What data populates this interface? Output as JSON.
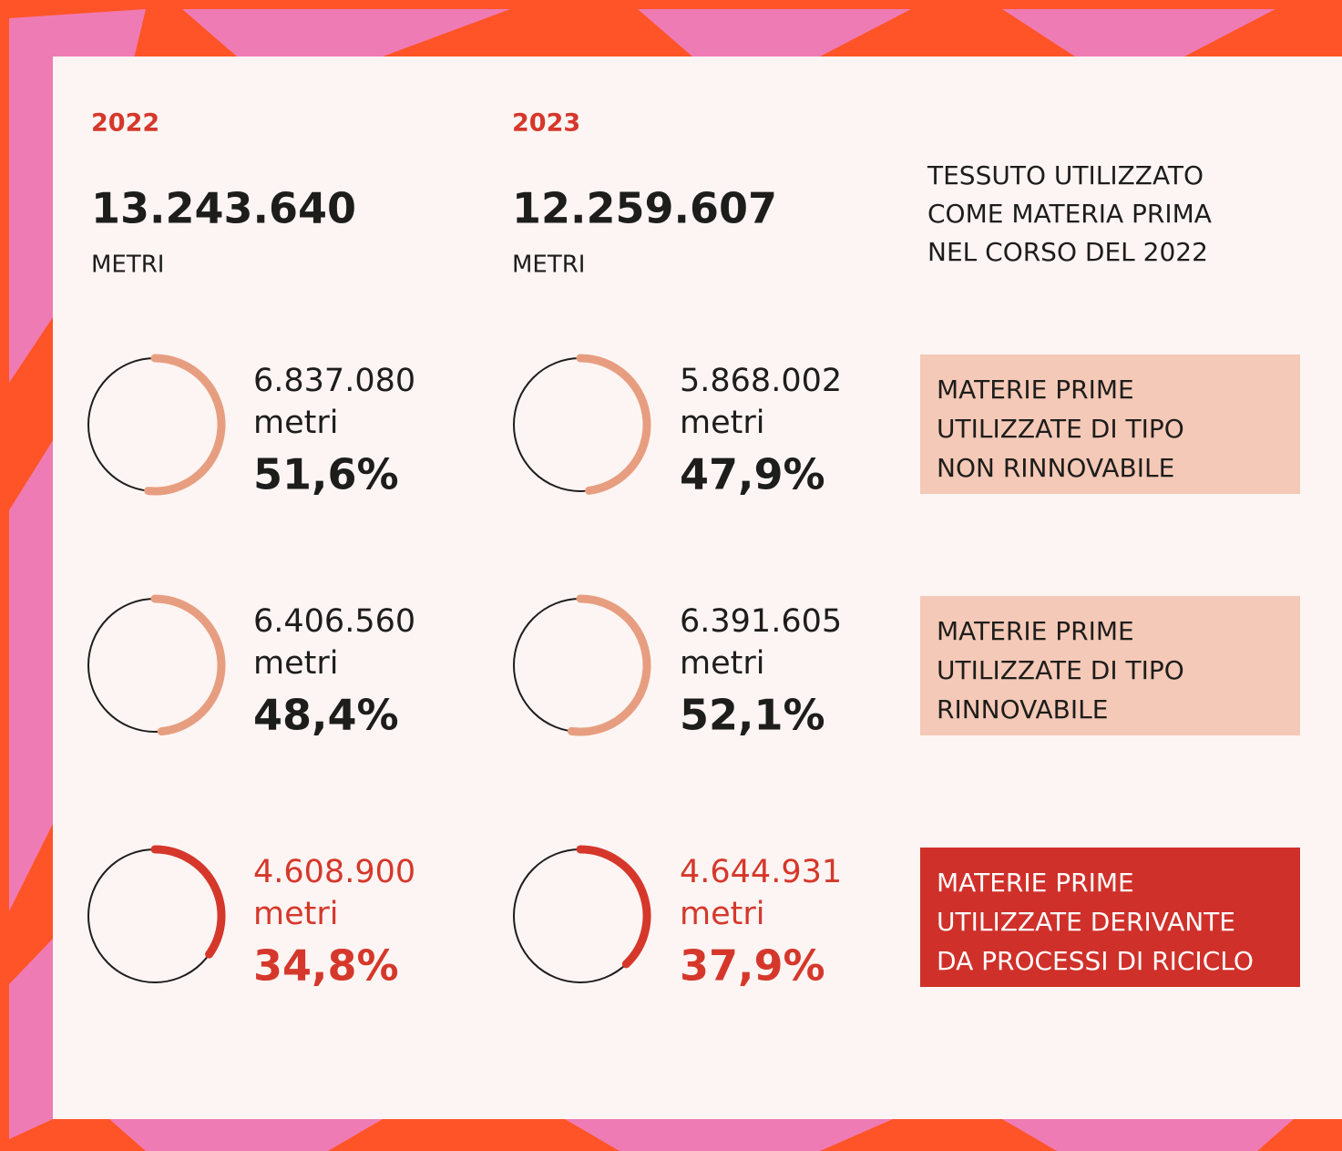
{
  "columns": [
    {
      "year": "2022",
      "total": "13.243.640",
      "unit": "METRI",
      "rows": [
        {
          "amount": "6.837.080",
          "unit": "metri",
          "percent": {
            "value": 51.6,
            "label": "51,6%"
          }
        },
        {
          "amount": "6.406.560",
          "unit": "metri",
          "percent": {
            "value": 48.4,
            "label": "48,4%"
          }
        },
        {
          "amount": "4.608.900",
          "unit": "metri",
          "percent": {
            "value": 34.8,
            "label": "34,8%"
          }
        }
      ]
    },
    {
      "year": "2023",
      "total": "12.259.607",
      "unit": "METRI",
      "rows": [
        {
          "amount": "5.868.002",
          "unit": "metri",
          "percent": {
            "value": 47.9,
            "label": "47,9%"
          }
        },
        {
          "amount": "6.391.605",
          "unit": "metri",
          "percent": {
            "value": 52.1,
            "label": "52,1%"
          }
        },
        {
          "amount": "4.644.931",
          "unit": "metri",
          "percent": {
            "value": 37.9,
            "label": "37,9%"
          }
        }
      ]
    }
  ],
  "description": [
    "TESSUTO UTILIZZATO",
    "COME MATERIA PRIMA",
    "NEL CORSO DEL 2022"
  ],
  "categories": [
    [
      "MATERIE PRIME",
      "UTILIZZATE DI TIPO",
      "NON RINNOVABILE"
    ],
    [
      "MATERIE PRIME",
      "UTILIZZATE DI TIPO",
      "RINNOVABILE"
    ],
    [
      "MATERIE PRIME",
      "UTILIZZATE DERIVANTE",
      "DA PROCESSI DI RICICLO"
    ]
  ]
}
